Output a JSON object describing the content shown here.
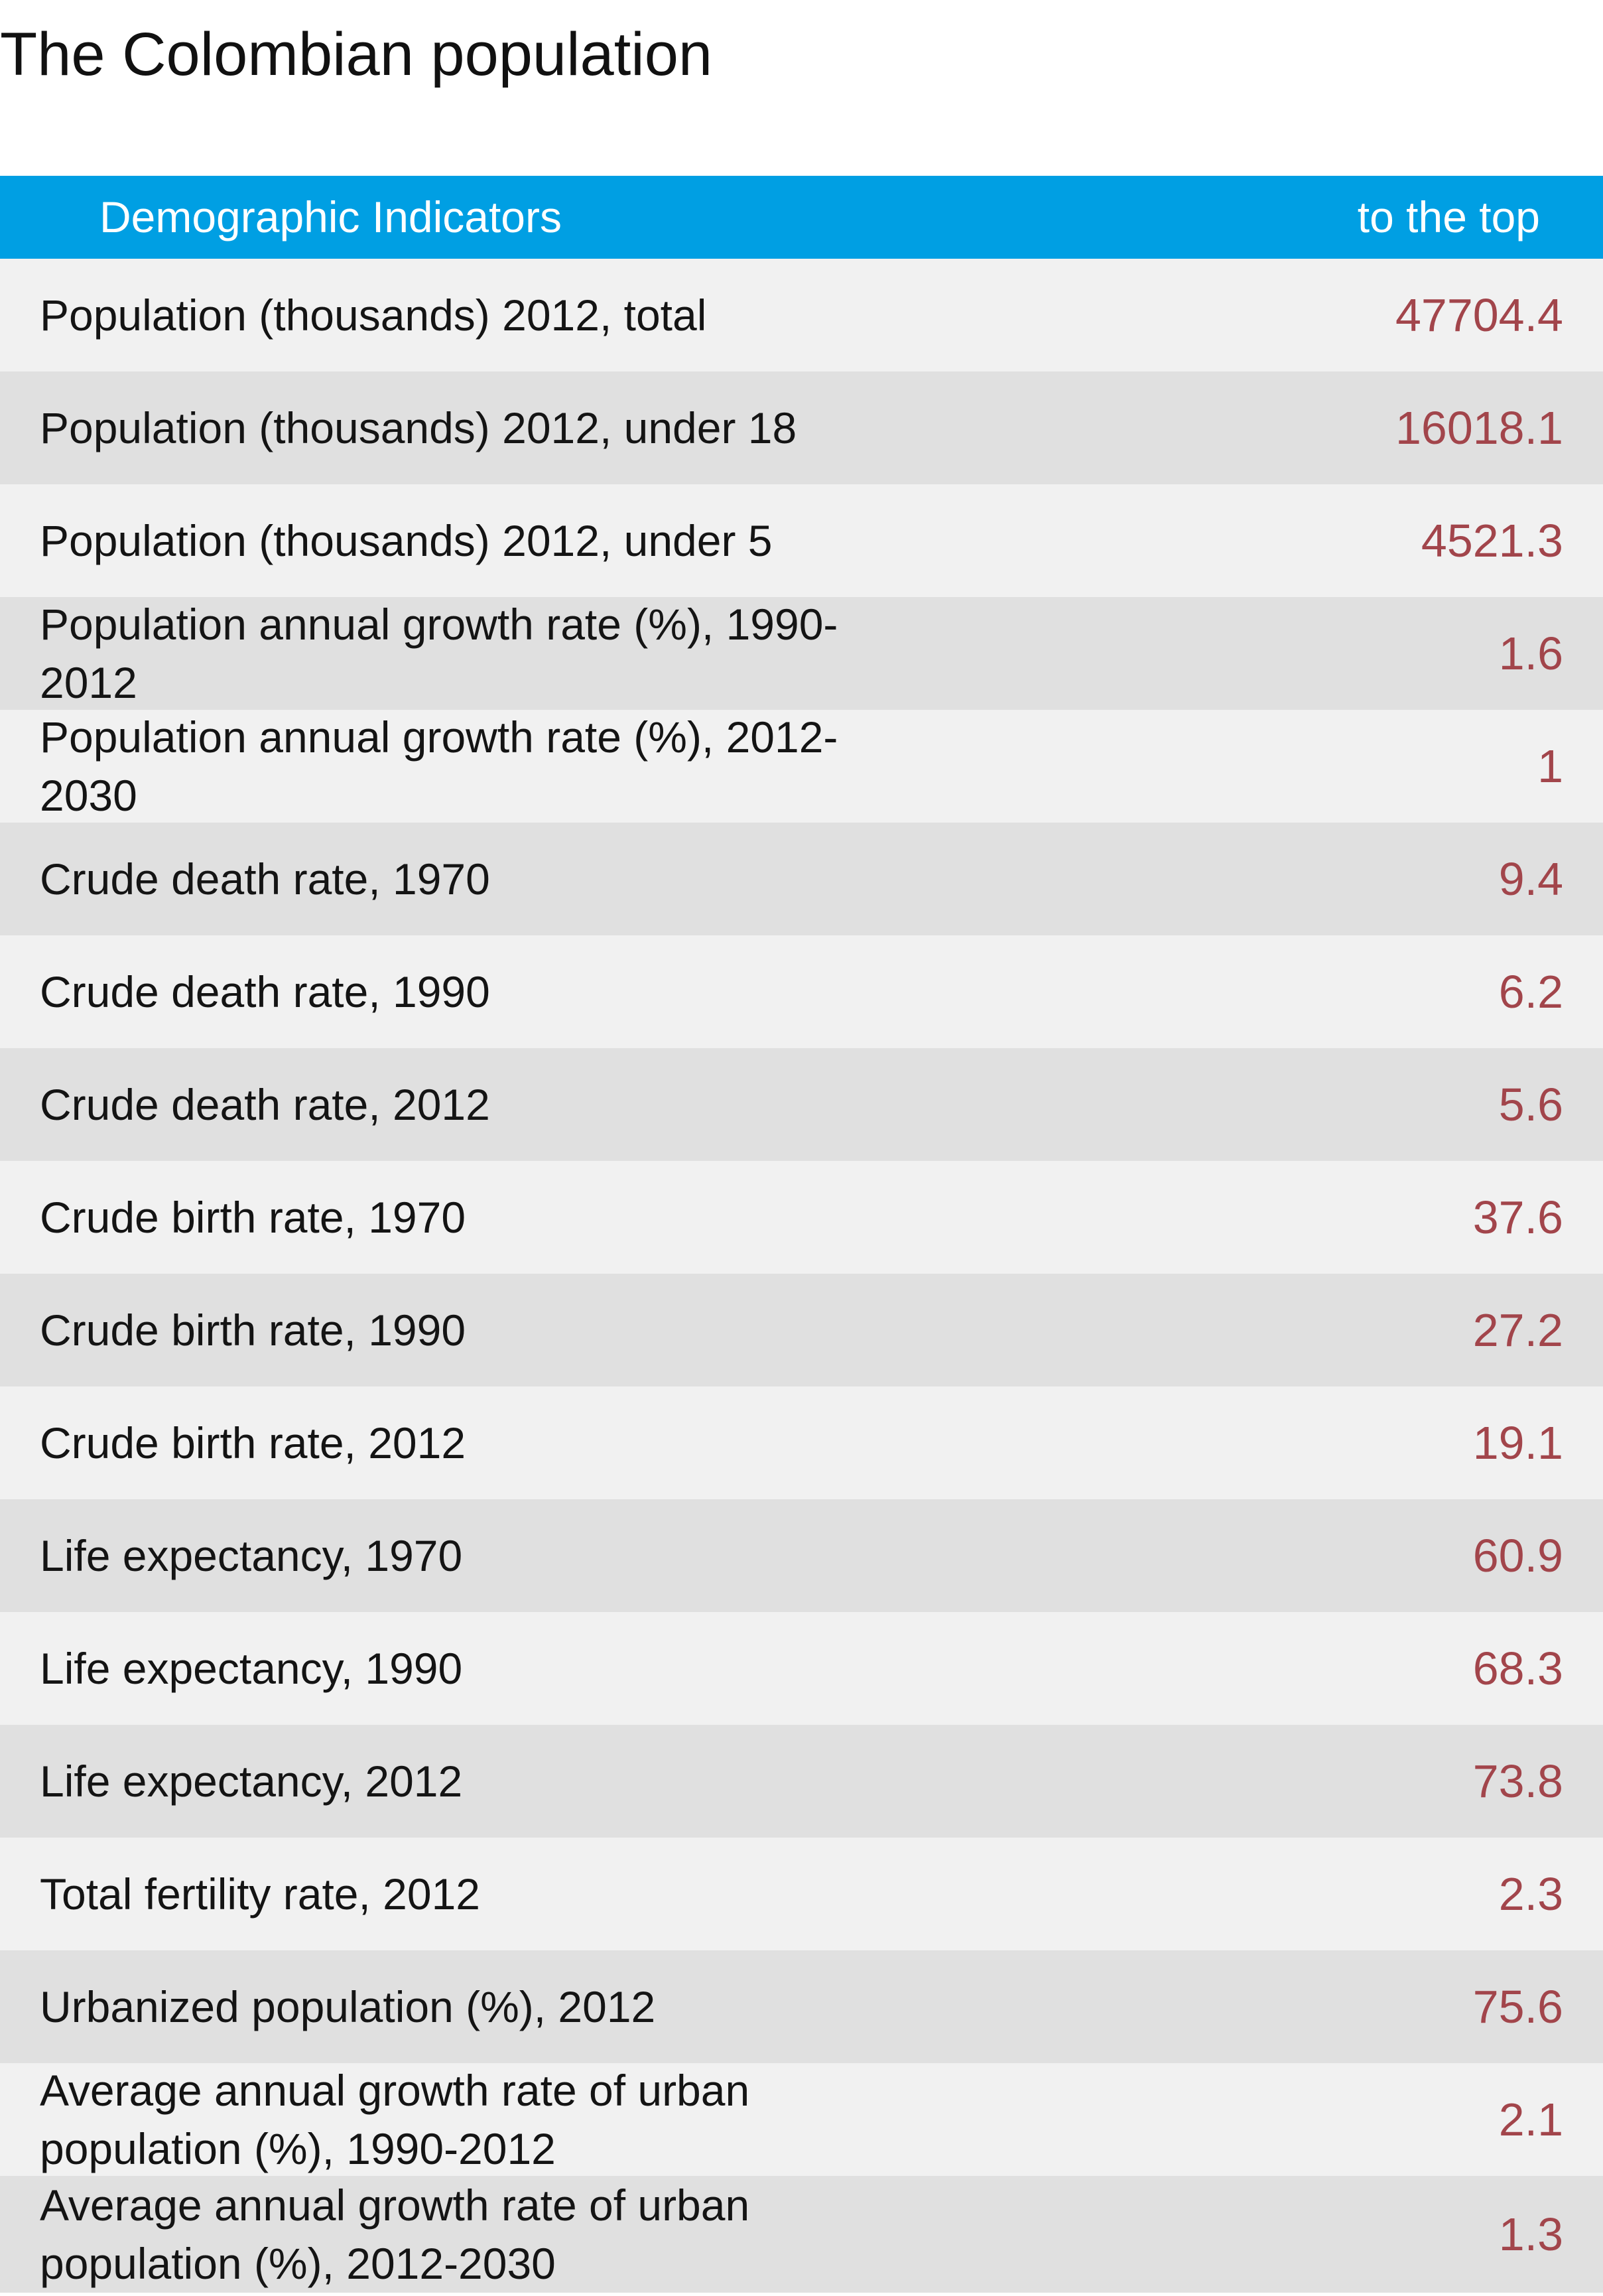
{
  "title": "The Colombian population",
  "header": {
    "indicator_label": "Demographic Indicators",
    "top_link": "to the top"
  },
  "rows": [
    {
      "label": "Population (thousands) 2012, total",
      "value": "47704.4"
    },
    {
      "label": "Population (thousands) 2012, under 18",
      "value": "16018.1"
    },
    {
      "label": "Population (thousands) 2012, under 5",
      "value": "4521.3"
    },
    {
      "label": "Population annual growth rate (%), 1990-2012",
      "value": "1.6"
    },
    {
      "label": "Population annual growth rate (%), 2012-2030",
      "value": "1"
    },
    {
      "label": "Crude death rate, 1970",
      "value": "9.4"
    },
    {
      "label": "Crude death rate, 1990",
      "value": "6.2"
    },
    {
      "label": "Crude death rate, 2012",
      "value": "5.6"
    },
    {
      "label": "Crude birth rate, 1970",
      "value": "37.6"
    },
    {
      "label": "Crude birth rate, 1990",
      "value": "27.2"
    },
    {
      "label": "Crude birth rate, 2012",
      "value": "19.1"
    },
    {
      "label": "Life expectancy, 1970",
      "value": "60.9"
    },
    {
      "label": "Life expectancy, 1990",
      "value": "68.3"
    },
    {
      "label": "Life expectancy, 2012",
      "value": "73.8"
    },
    {
      "label": "Total fertility rate, 2012",
      "value": "2.3"
    },
    {
      "label": "Urbanized population (%), 2012",
      "value": "75.6"
    },
    {
      "label": "Average annual growth rate of urban population (%), 1990-2012",
      "value": "2.1"
    },
    {
      "label": "Average annual growth rate of urban population (%), 2012-2030",
      "value": "1.3"
    }
  ],
  "colors": {
    "header_bg": "#009fe3",
    "row_light": "#f1f1f1",
    "row_dark": "#e0e0e0",
    "value_text": "#a2454b"
  }
}
